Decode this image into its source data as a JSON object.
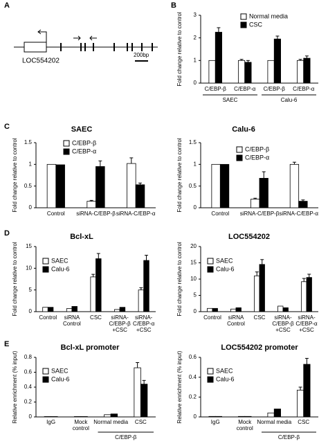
{
  "gene_diagram": {
    "panel": "A",
    "gene_label": "LOC554202",
    "scale_label": "200bp"
  },
  "chart_data": [
    {
      "type": "bar",
      "panel": "B",
      "ylabel": "Fold change relative to control",
      "categories": [
        "C/EBP-β",
        "C/EBP-α",
        "C/EBP-β",
        "C/EBP-α"
      ],
      "group_labels": [
        "SAEC",
        "Calu-6"
      ],
      "series": [
        {
          "name": "Normal media",
          "color": "#ffffff",
          "values": [
            1,
            1,
            1,
            1
          ],
          "errors": [
            null,
            0.05,
            null,
            0.05
          ]
        },
        {
          "name": "CSC",
          "color": "#000000",
          "values": [
            2.25,
            0.92,
            1.95,
            1.1
          ],
          "errors": [
            0.2,
            0.08,
            0.13,
            0.1
          ]
        }
      ],
      "ylim": [
        0,
        3
      ],
      "yticks": [
        0,
        1,
        2,
        3
      ],
      "legend": "upper right"
    },
    {
      "type": "bar",
      "panel": "C",
      "title": "SAEC",
      "ylabel": "Fold change relative to control",
      "categories": [
        "Control",
        "siRNA-C/EBP-β",
        "siRNA-C/EBP-α"
      ],
      "series": [
        {
          "name": "C/EBP-β",
          "color": "#ffffff",
          "values": [
            1,
            0.15,
            1.02
          ],
          "errors": [
            null,
            0.02,
            0.13
          ]
        },
        {
          "name": "C/EBP-α",
          "color": "#000000",
          "values": [
            0.99,
            0.95,
            0.53
          ],
          "errors": [
            null,
            0.13,
            0.04
          ]
        }
      ],
      "ylim": [
        0,
        1.5
      ],
      "yticks": [
        0,
        0.5,
        1,
        1.5
      ],
      "legend": "upper center"
    },
    {
      "type": "bar",
      "title": "Calu-6",
      "ylabel": "Fold change relative to control",
      "categories": [
        "Control",
        "siRNA-C/EBP-β",
        "siRNA-C/EBP-α"
      ],
      "series": [
        {
          "name": "C/EBP-β",
          "color": "#ffffff",
          "values": [
            1,
            0.2,
            1.0
          ],
          "errors": [
            null,
            0.02,
            0.05
          ]
        },
        {
          "name": "C/EBP-α",
          "color": "#000000",
          "values": [
            1,
            0.68,
            0.15
          ],
          "errors": [
            null,
            0.15,
            0.03
          ]
        }
      ],
      "ylim": [
        0,
        1.5
      ],
      "yticks": [
        0,
        0.5,
        1,
        1.5
      ],
      "legend": "upper center"
    },
    {
      "type": "bar",
      "panel": "D",
      "title": "Bcl-xL",
      "ylabel": "Fold change relative to control",
      "categories": [
        "Control",
        [
          "siRNA",
          "Control"
        ],
        "CSC",
        [
          "siRNA-",
          "C/EBP-β",
          "+CSC"
        ],
        [
          "siRNA-",
          "C/EBP-α",
          "+CSC"
        ]
      ],
      "series": [
        {
          "name": "SAEC",
          "color": "#ffffff",
          "values": [
            1,
            0.7,
            8,
            0.5,
            5
          ],
          "errors": [
            null,
            null,
            0.6,
            null,
            0.5
          ]
        },
        {
          "name": "Calu-6",
          "color": "#000000",
          "values": [
            1,
            1.2,
            12.2,
            1,
            11.8
          ],
          "errors": [
            null,
            null,
            1.2,
            null,
            1.2
          ]
        }
      ],
      "ylim": [
        0,
        15
      ],
      "yticks": [
        0,
        5,
        10,
        15
      ],
      "legend": "upper left"
    },
    {
      "type": "bar",
      "title": "LOC554202",
      "ylabel": "Fold change relative to control",
      "categories": [
        "Control",
        [
          "siRNA",
          "Control"
        ],
        "CSC",
        [
          "siRNA-",
          "C/EBP-β",
          "+CSC"
        ],
        [
          "siRNA-",
          "C/EBP-α",
          "+CSC"
        ]
      ],
      "series": [
        {
          "name": "SAEC",
          "color": "#ffffff",
          "values": [
            1,
            0.8,
            11,
            1.7,
            9.2
          ],
          "errors": [
            null,
            null,
            1.2,
            null,
            1
          ]
        },
        {
          "name": "Calu-6",
          "color": "#000000",
          "values": [
            1,
            1.2,
            14.5,
            1.2,
            10.5
          ],
          "errors": [
            null,
            null,
            1.5,
            null,
            1
          ]
        }
      ],
      "ylim": [
        0,
        20
      ],
      "yticks": [
        0,
        5,
        10,
        15,
        20
      ],
      "legend": "upper left"
    },
    {
      "type": "bar",
      "panel": "E",
      "title": "Bcl-xL promoter",
      "ylabel": "Relative enrichment (% input)",
      "categories": [
        "IgG",
        [
          "Mock",
          "control"
        ],
        "Normal media",
        "CSC"
      ],
      "group_labels": [
        "C/EBP-β"
      ],
      "series": [
        {
          "name": "SAEC",
          "color": "#ffffff",
          "values": [
            0.005,
            0.005,
            0.03,
            0.66
          ],
          "errors": [
            null,
            null,
            null,
            0.07
          ]
        },
        {
          "name": "Calu-6",
          "color": "#000000",
          "values": [
            0.005,
            0.005,
            0.04,
            0.44
          ],
          "errors": [
            null,
            null,
            null,
            0.05
          ]
        }
      ],
      "ylim": [
        0,
        0.8
      ],
      "yticks": [
        0,
        0.2,
        0.4,
        0.6,
        0.8
      ],
      "legend": "upper left"
    },
    {
      "type": "bar",
      "title": "LOC554202 promoter",
      "ylabel": "Relative enrichment (% input)",
      "categories": [
        "IgG",
        [
          "Mock",
          "control"
        ],
        "Normal media",
        "CSC"
      ],
      "group_labels": [
        "C/EBP-β"
      ],
      "series": [
        {
          "name": "SAEC",
          "color": "#ffffff",
          "values": [
            0.005,
            0.005,
            0.04,
            0.27
          ],
          "errors": [
            null,
            null,
            null,
            0.03
          ]
        },
        {
          "name": "Calu-6",
          "color": "#000000",
          "values": [
            0.005,
            0.005,
            0.08,
            0.53
          ],
          "errors": [
            null,
            null,
            null,
            0.06
          ]
        }
      ],
      "ylim": [
        0,
        0.6
      ],
      "yticks": [
        0,
        0.2,
        0.4,
        0.6
      ],
      "legend": "upper left"
    }
  ]
}
